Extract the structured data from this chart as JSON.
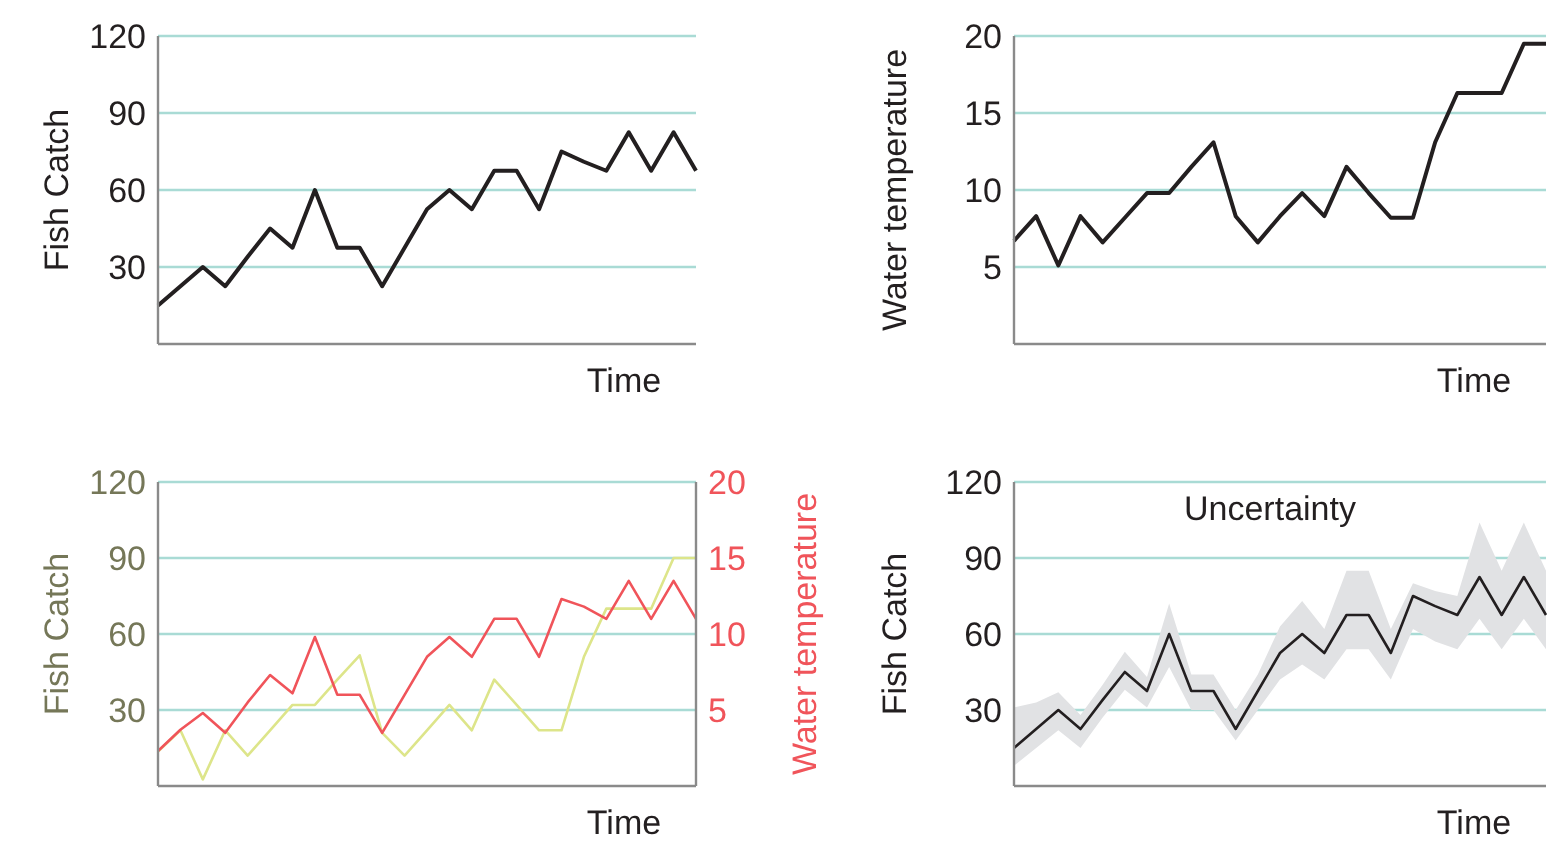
{
  "chart_data": [
    {
      "type": "line",
      "xlabel": "Time",
      "ylabel": "Fish Catch",
      "categories": [
        null,
        null,
        null,
        null,
        null,
        null,
        null,
        null,
        null,
        null,
        null,
        null,
        null,
        null,
        null,
        null,
        null,
        null,
        null,
        null,
        null,
        null,
        null,
        null,
        null
      ],
      "ylim": [
        0,
        120
      ],
      "yticks": [
        30,
        60,
        90,
        120
      ],
      "grid": "y",
      "tick_labels": "y",
      "series": [
        {
          "color": "#231f20",
          "values": [
            15,
            22.5,
            30,
            22.5,
            34,
            45,
            37.5,
            60,
            37.5,
            37.5,
            22.5,
            37.5,
            52.5,
            60,
            52.5,
            67.5,
            67.5,
            52.5,
            75,
            71,
            67.5,
            82.5,
            67.5,
            82.5,
            67.5
          ]
        }
      ]
    },
    {
      "type": "line",
      "xlabel": "Time",
      "ylabel": "Water temperature",
      "categories": [
        null,
        null,
        null,
        null,
        null,
        null,
        null,
        null,
        null,
        null,
        null,
        null,
        null,
        null,
        null,
        null,
        null,
        null,
        null,
        null,
        null,
        null,
        null,
        null,
        null
      ],
      "ylim": [
        0,
        20
      ],
      "yticks": [
        5,
        10,
        15,
        20
      ],
      "grid": "y",
      "tick_labels": "y",
      "series": [
        {
          "color": "#231f20",
          "values": [
            6.7,
            8.3,
            5.1,
            8.3,
            6.6,
            8.2,
            9.8,
            9.8,
            11.5,
            13.1,
            8.3,
            6.6,
            8.3,
            9.8,
            8.3,
            11.5,
            9.8,
            8.2,
            8.2,
            13.1,
            16.3,
            16.3,
            16.3,
            19.5,
            19.5
          ]
        }
      ]
    },
    {
      "type": "line",
      "xlabel": "Time",
      "ylabel": "Fish Catch",
      "y2label": "Water temperature",
      "categories": [
        null,
        null,
        null,
        null,
        null,
        null,
        null,
        null,
        null,
        null,
        null,
        null,
        null,
        null,
        null,
        null,
        null,
        null,
        null,
        null,
        null,
        null,
        null,
        null,
        null
      ],
      "ylim": [
        0,
        120
      ],
      "yticks": [
        30,
        60,
        90,
        120
      ],
      "y2lim": [
        0,
        20
      ],
      "y2ticks": [
        5,
        10,
        15,
        20
      ],
      "grid": "y",
      "tick_labels": "y",
      "series": [
        {
          "color": "#dde58a",
          "values": [
            13.6,
            22,
            2.6,
            22,
            12,
            22,
            32,
            32,
            42,
            51.6,
            21,
            12,
            22,
            32,
            22,
            42,
            32,
            22,
            22,
            51,
            70,
            70,
            70,
            90,
            90
          ]
        },
        {
          "color": "#f0545a",
          "axis": "y2",
          "values": [
            2.3,
            3.7,
            4.8,
            3.5,
            5.5,
            7.3,
            6.1,
            9.8,
            6,
            6,
            3.5,
            6,
            8.5,
            9.8,
            8.5,
            11,
            11,
            8.5,
            12.3,
            11.8,
            11,
            13.5,
            11,
            13.5,
            11
          ]
        }
      ]
    },
    {
      "type": "line",
      "xlabel": "Time",
      "ylabel": "Fish Catch",
      "annotations": [
        "Uncertainty"
      ],
      "categories": [
        null,
        null,
        null,
        null,
        null,
        null,
        null,
        null,
        null,
        null,
        null,
        null,
        null,
        null,
        null,
        null,
        null,
        null,
        null,
        null,
        null,
        null,
        null,
        null,
        null
      ],
      "ylim": [
        0,
        120
      ],
      "yticks": [
        30,
        60,
        90,
        120
      ],
      "grid": "y",
      "tick_labels": "y",
      "series": [
        {
          "color": "#231f20",
          "values": [
            15,
            22.5,
            30,
            22.5,
            34,
            45,
            37.5,
            60,
            37.5,
            37.5,
            22.5,
            37.5,
            52.5,
            60,
            52.5,
            67.5,
            67.5,
            52.5,
            75,
            71,
            67.5,
            82.5,
            67.5,
            82.5,
            67.5
          ],
          "lower": [
            8,
            15,
            22,
            15,
            27,
            38,
            31,
            47,
            30,
            30,
            18,
            30,
            42,
            48,
            42,
            54,
            54,
            42,
            62,
            57,
            54,
            66,
            54,
            66,
            54
          ],
          "upper": [
            31,
            33,
            37,
            28,
            40,
            53,
            43,
            72,
            44,
            44,
            30,
            44,
            63,
            73,
            62,
            85,
            85,
            62,
            80,
            77,
            75,
            104,
            85,
            104,
            85
          ]
        }
      ]
    }
  ]
}
